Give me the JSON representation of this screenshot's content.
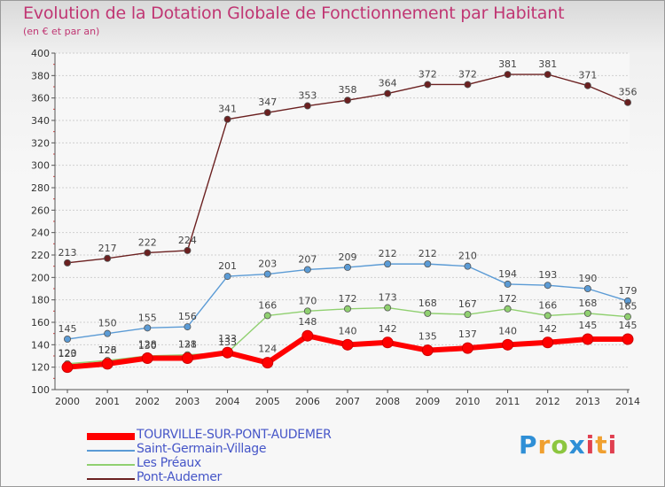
{
  "title": "Evolution de la Dotation Globale de Fonctionnement par Habitant",
  "subtitle": "(en € et par an)",
  "brand": "Proxiti",
  "chart_data": {
    "type": "line",
    "x": [
      "2000",
      "2001",
      "2002",
      "2003",
      "2004",
      "2005",
      "2006",
      "2007",
      "2008",
      "2009",
      "2010",
      "2011",
      "2012",
      "2013",
      "2014"
    ],
    "ylim": [
      100,
      400
    ],
    "yticks": [
      100,
      120,
      140,
      160,
      180,
      200,
      220,
      240,
      260,
      280,
      300,
      320,
      340,
      360,
      380,
      400
    ],
    "grid": "horizontal",
    "legend_position": "bottom-left",
    "series": [
      {
        "name": "Pont-Audemer",
        "color": "#6b2020",
        "values": [
          213,
          217,
          222,
          224,
          341,
          347,
          353,
          358,
          364,
          372,
          372,
          381,
          381,
          371,
          356
        ]
      },
      {
        "name": "Saint-Germain-Village",
        "color": "#5b9bd5",
        "values": [
          145,
          150,
          155,
          156,
          201,
          203,
          207,
          209,
          212,
          212,
          210,
          194,
          193,
          190,
          179
        ]
      },
      {
        "name": "Les Préaux",
        "color": "#90d070",
        "values": [
          123,
          126,
          130,
          131,
          133,
          166,
          170,
          172,
          173,
          168,
          167,
          172,
          166,
          168,
          165
        ]
      },
      {
        "name": "TOURVILLE-SUR-PONT-AUDEMER",
        "color": "#ff0000",
        "values": [
          120,
          123,
          128,
          128,
          133,
          124,
          148,
          140,
          142,
          135,
          137,
          140,
          142,
          145,
          145
        ]
      }
    ]
  }
}
